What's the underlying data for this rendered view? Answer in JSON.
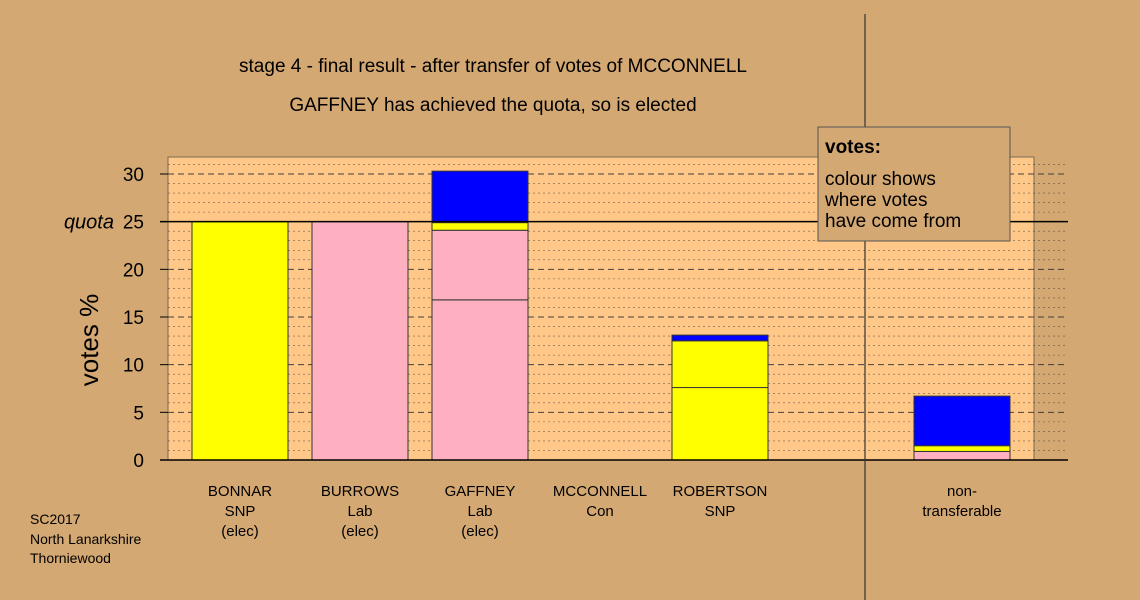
{
  "title_line1": "stage 4 - final result - after transfer of votes of MCCONNELL",
  "title_line2": "GAFFNEY has achieved the quota, so is elected",
  "ylabel": "votes %",
  "quota_label": "quota",
  "legend": {
    "title": "votes:",
    "lines": [
      "colour shows",
      "where votes",
      "have come from"
    ]
  },
  "footer": [
    "SC2017",
    "North Lanarkshire",
    "Thorniewood"
  ],
  "colors": {
    "background": "#d4a873",
    "plot_background": "#ffc788",
    "snp": "#ffff00",
    "lab": "#ffb0c0",
    "con": "#0000ff",
    "legend_box": "#d4a873"
  },
  "chart_data": {
    "type": "bar",
    "stacked": true,
    "ylim": [
      0,
      30
    ],
    "yticks": [
      0,
      5,
      10,
      15,
      20,
      25,
      30
    ],
    "quota": 25,
    "grid": true,
    "legend_position": "top-right",
    "categories": [
      {
        "lines": [
          "BONNAR",
          "SNP",
          "(elec)"
        ],
        "segments": [
          {
            "party": "SNP",
            "value": 25
          }
        ]
      },
      {
        "lines": [
          "BURROWS",
          "Lab",
          "(elec)"
        ],
        "segments": [
          {
            "party": "Lab",
            "value": 25
          }
        ]
      },
      {
        "lines": [
          "GAFFNEY",
          "Lab",
          "(elec)"
        ],
        "segments": [
          {
            "party": "Lab",
            "value": 16.8
          },
          {
            "party": "Lab",
            "value": 7.3
          },
          {
            "party": "SNP",
            "value": 0.8
          },
          {
            "party": "Con",
            "value": 5.4
          }
        ]
      },
      {
        "lines": [
          "MCCONNELL",
          "Con"
        ],
        "segments": []
      },
      {
        "lines": [
          "ROBERTSON",
          "SNP"
        ],
        "segments": [
          {
            "party": "SNP",
            "value": 7.6
          },
          {
            "party": "SNP",
            "value": 4.9
          },
          {
            "party": "Con",
            "value": 0.6
          }
        ]
      },
      {
        "lines": [
          "non-",
          "transferable"
        ],
        "segments": [
          {
            "party": "Lab",
            "value": 0.9
          },
          {
            "party": "SNP",
            "value": 0.6
          },
          {
            "party": "Con",
            "value": 5.2
          }
        ]
      }
    ]
  }
}
